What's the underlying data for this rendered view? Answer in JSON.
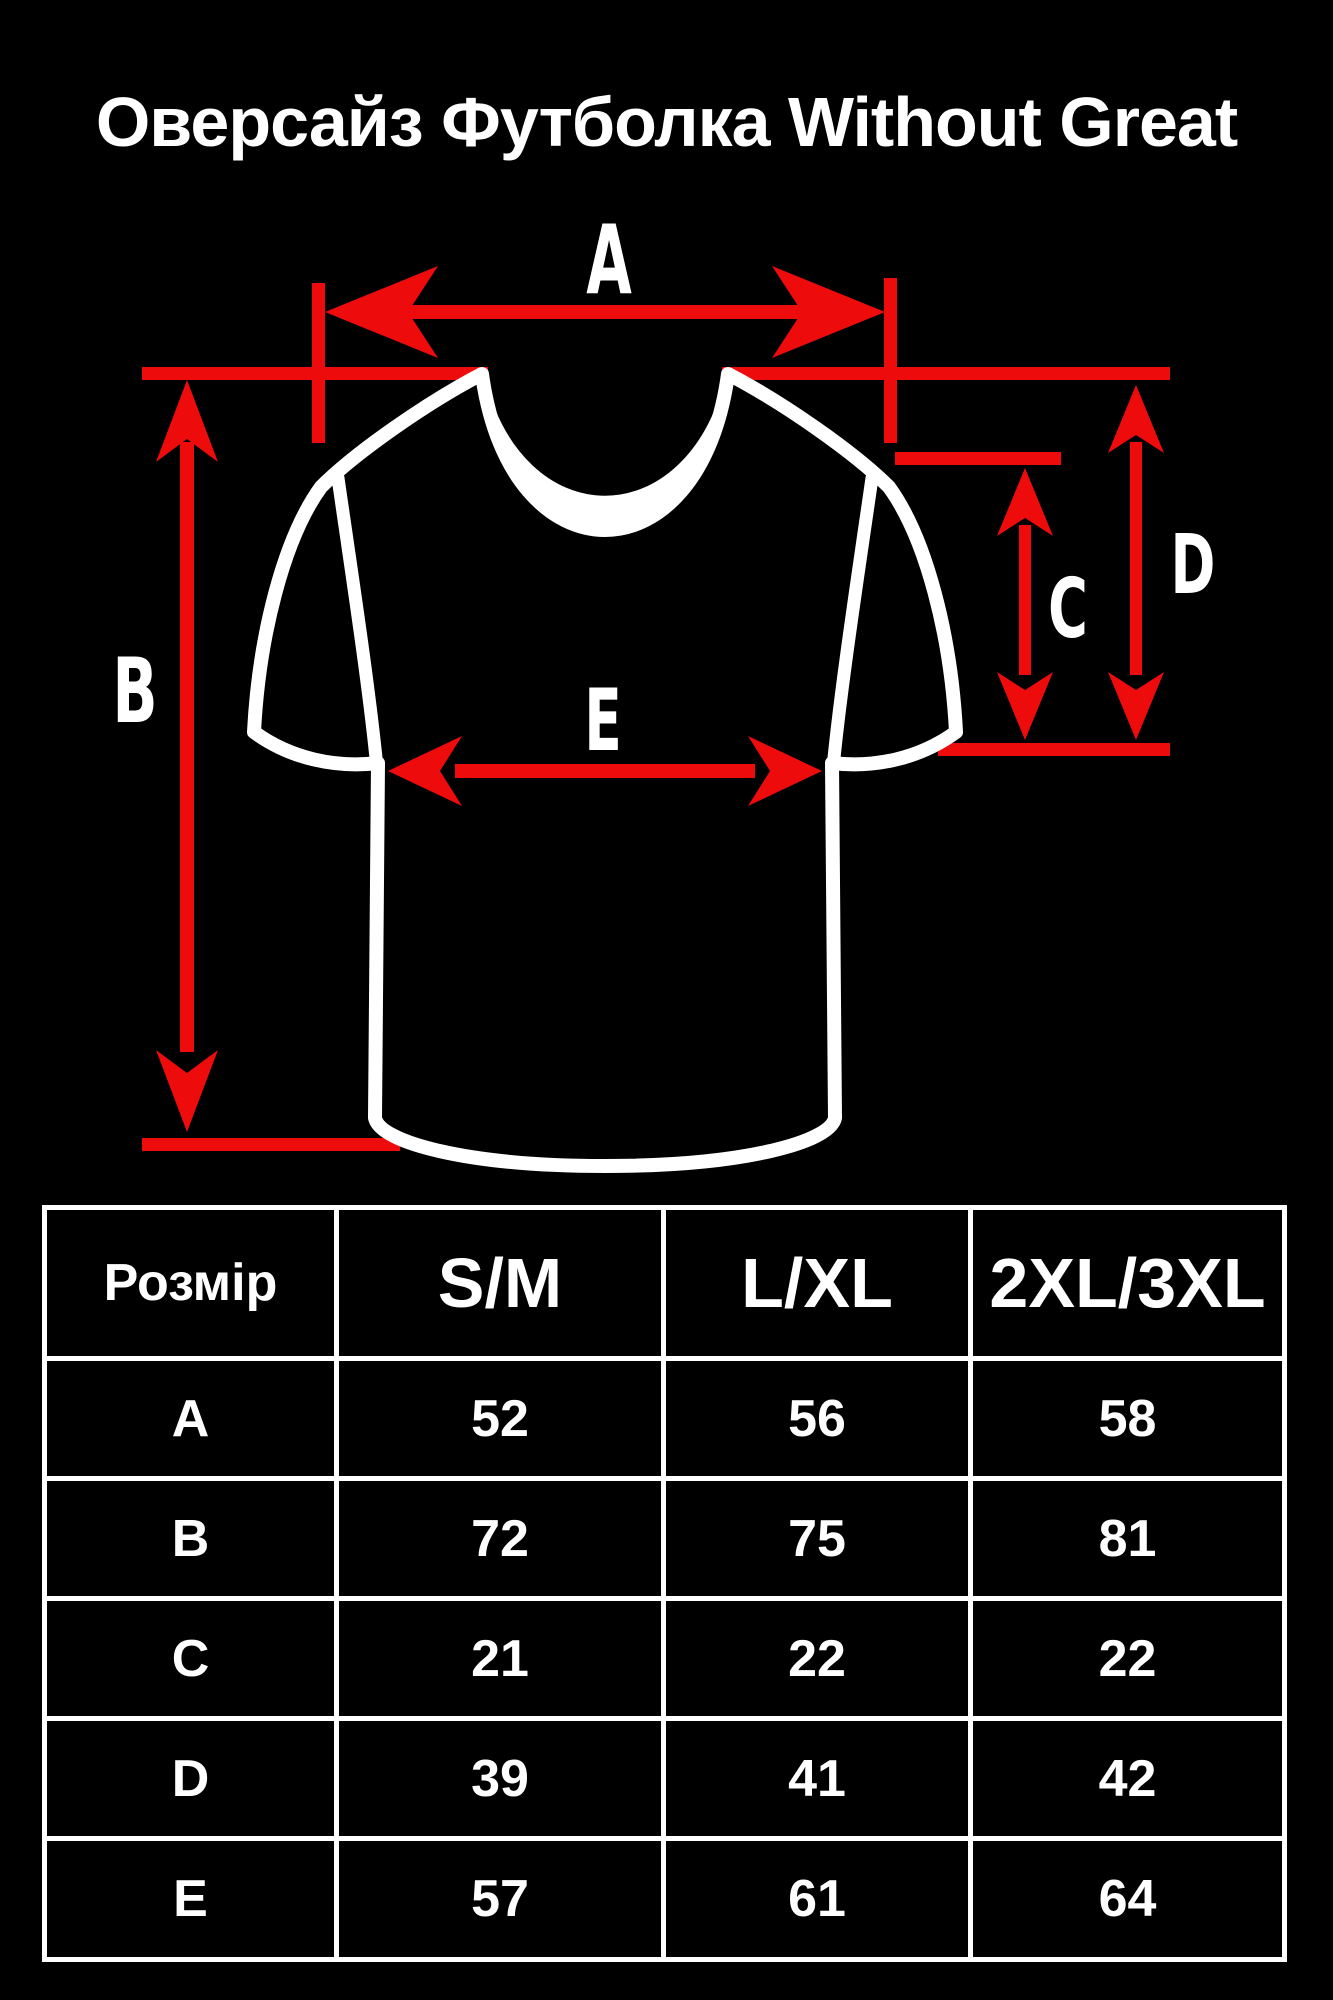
{
  "title": "Оверсайз Футболка Without Great",
  "colors": {
    "background": "#000000",
    "foreground": "#ffffff",
    "accent_red": "#ee0b0b"
  },
  "diagram": {
    "labels": {
      "a": "A",
      "b": "B",
      "c": "C",
      "d": "D",
      "e": "E"
    }
  },
  "size_table": {
    "header": [
      "Розмір",
      "S/M",
      "L/XL",
      "2XL/3XL"
    ],
    "rows": [
      {
        "label": "A",
        "values": [
          "52",
          "56",
          "58"
        ]
      },
      {
        "label": "B",
        "values": [
          "72",
          "75",
          "81"
        ]
      },
      {
        "label": "C",
        "values": [
          "21",
          "22",
          "22"
        ]
      },
      {
        "label": "D",
        "values": [
          "39",
          "41",
          "42"
        ]
      },
      {
        "label": "E",
        "values": [
          "57",
          "61",
          "64"
        ]
      }
    ]
  }
}
